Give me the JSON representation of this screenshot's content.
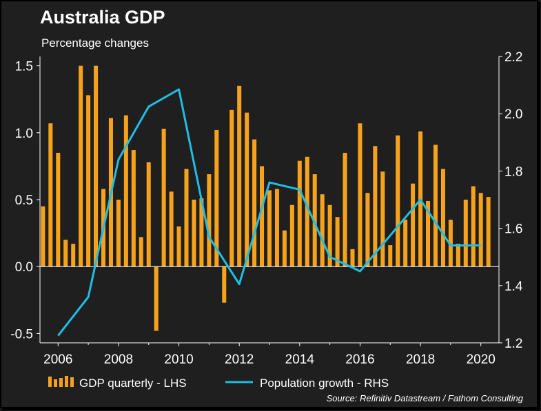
{
  "chart_data": {
    "type": "bar+line",
    "title": "Australia GDP",
    "subtitle": "Percentage changes",
    "source": "Source: Refinitiv Datastream / Fathom Consulting",
    "colors": {
      "bars": "#f7a21b",
      "line": "#1ebee6",
      "background": "#1f1f1f",
      "zero_line": "#ffffff"
    },
    "x_range": [
      2005.4,
      2020.6
    ],
    "x_ticks": [
      2006,
      2008,
      2010,
      2012,
      2014,
      2016,
      2018,
      2020
    ],
    "x_tick_labels": [
      "2006",
      "2008",
      "2010",
      "2012",
      "2014",
      "2016",
      "2018",
      "2020"
    ],
    "left_axis": {
      "range": [
        -0.57,
        1.57
      ],
      "ticks": [
        -0.5,
        0.0,
        0.5,
        1.0,
        1.5
      ],
      "labels": [
        "-0.5",
        "0.0",
        "0.5",
        "1.0",
        "1.5"
      ]
    },
    "right_axis": {
      "range": [
        1.2,
        2.2
      ],
      "ticks": [
        1.2,
        1.4,
        1.6,
        1.8,
        2.0,
        2.2
      ],
      "labels": [
        "1.2",
        "1.4",
        "1.6",
        "1.8",
        "2.0",
        "2.2"
      ]
    },
    "series": [
      {
        "name": "GDP quarterly - LHS",
        "legend_label": "GDP quarterly - LHS",
        "axis": "left",
        "kind": "bar",
        "x_start": 2005.5,
        "x_step": 0.25,
        "values": [
          0.45,
          1.07,
          0.85,
          0.2,
          0.17,
          1.5,
          1.28,
          1.5,
          0.58,
          1.11,
          0.5,
          1.13,
          0.87,
          0.22,
          0.78,
          -0.48,
          1.03,
          0.56,
          0.3,
          0.73,
          0.5,
          0.51,
          0.69,
          1.02,
          -0.27,
          1.17,
          1.35,
          1.15,
          0.95,
          0.75,
          0.57,
          0.58,
          0.27,
          0.46,
          0.79,
          0.82,
          0.69,
          0.54,
          0.46,
          0.37,
          0.85,
          0.13,
          1.07,
          0.55,
          0.9,
          0.71,
          0.16,
          0.98,
          0.35,
          0.62,
          1.01,
          0.49,
          0.91,
          0.73,
          0.35,
          0.17,
          0.5,
          0.6,
          0.55,
          0.52
        ]
      },
      {
        "name": "Population growth - RHS",
        "legend_label": "Population growth - RHS",
        "axis": "right",
        "kind": "line",
        "x": [
          2006.0,
          2007.0,
          2008.0,
          2009.0,
          2010.0,
          2011.0,
          2012.0,
          2013.0,
          2014.0,
          2015.0,
          2016.0,
          2017.0,
          2018.0,
          2019.0,
          2020.0
        ],
        "y": [
          1.225,
          1.36,
          1.84,
          2.025,
          2.085,
          1.57,
          1.405,
          1.76,
          1.735,
          1.5,
          1.45,
          1.575,
          1.7,
          1.54,
          1.54
        ]
      }
    ]
  }
}
